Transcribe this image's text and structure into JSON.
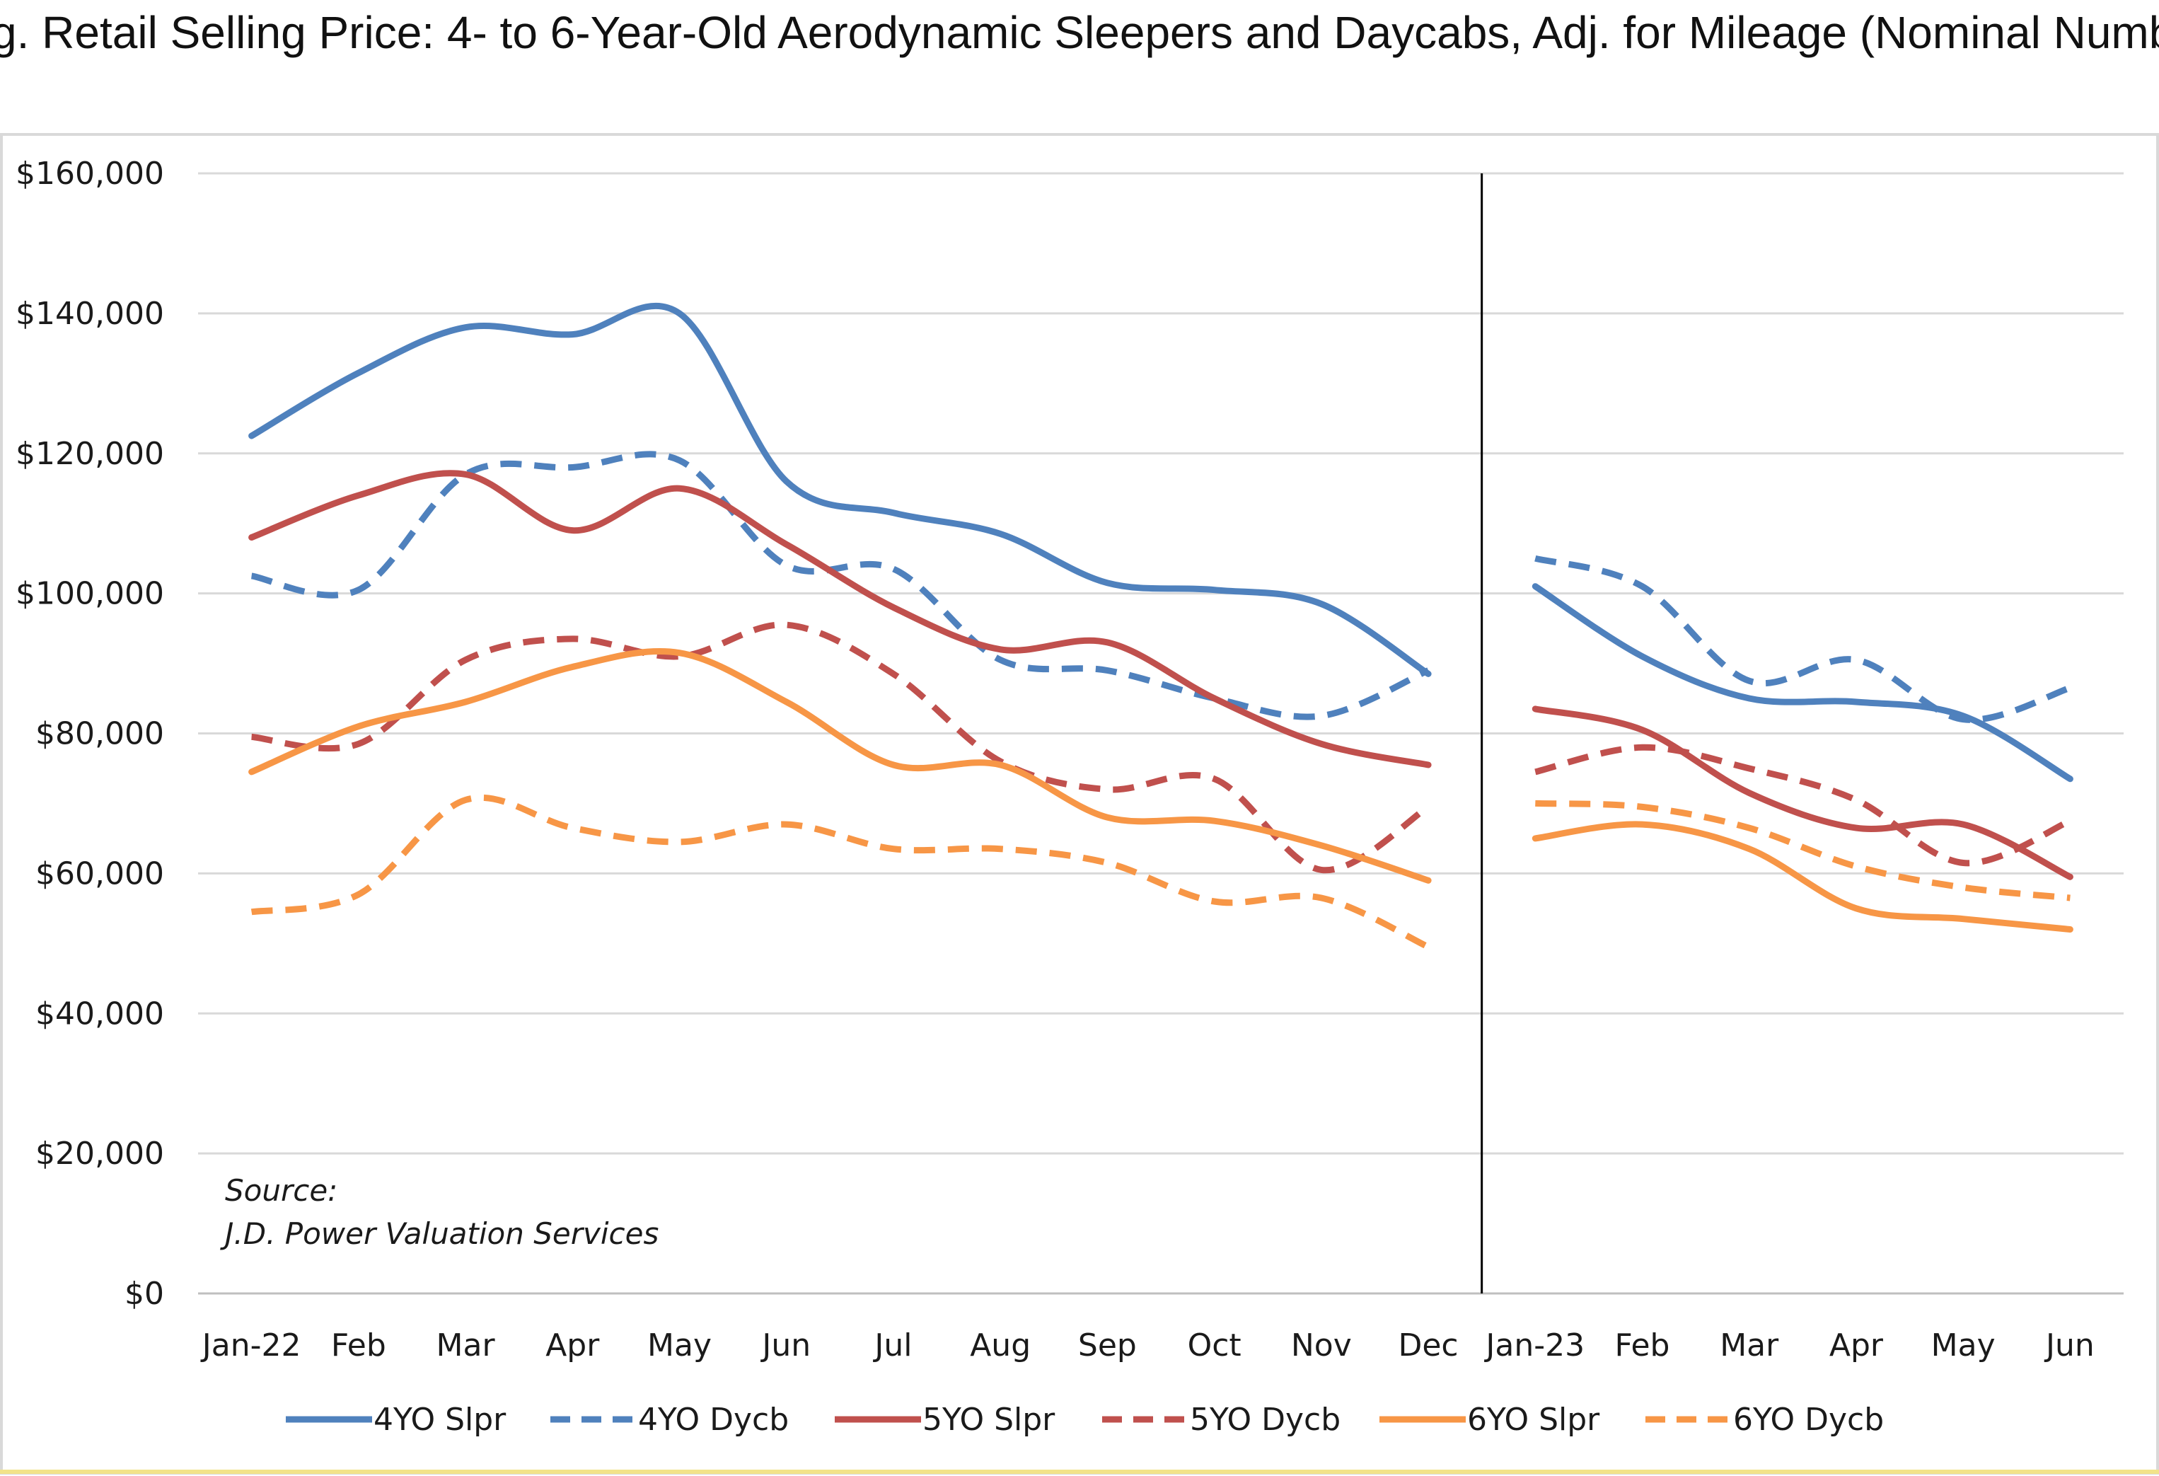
{
  "chart_data": {
    "type": "line",
    "title": "g. Retail Selling Price: 4- to 6-Year-Old Aerodynamic Sleepers and Daycabs, Adj. for Mileage (Nominal Numbe",
    "xlabel": "",
    "ylabel": "",
    "ylim": [
      0,
      160000
    ],
    "yticks": [
      "$0",
      "$20,000",
      "$40,000",
      "$60,000",
      "$80,000",
      "$100,000",
      "$120,000",
      "$140,000",
      "$160,000"
    ],
    "categories": [
      "Jan-22",
      "Feb",
      "Mar",
      "Apr",
      "May",
      "Jun",
      "Jul",
      "Aug",
      "Sep",
      "Oct",
      "Nov",
      "Dec",
      "Jan-23",
      "Feb",
      "Mar",
      "Apr",
      "May",
      "Jun"
    ],
    "grid": true,
    "legend_position": "bottom",
    "divider_between": [
      "Dec",
      "Jan-23"
    ],
    "source_lines": [
      "Source:",
      "J.D. Power Valuation Services"
    ],
    "series": [
      {
        "name": "4YO Slpr",
        "color": "#4f81bd",
        "dashed": false,
        "values": [
          122500,
          131500,
          138000,
          137000,
          140000,
          116000,
          111500,
          108500,
          101500,
          100500,
          98500,
          88500,
          101000,
          91000,
          85000,
          84500,
          82500,
          73500
        ]
      },
      {
        "name": "4YO Dycb",
        "color": "#4f81bd",
        "dashed": true,
        "values": [
          102500,
          100500,
          117000,
          118000,
          119000,
          104000,
          103500,
          90500,
          89000,
          85000,
          82500,
          89000,
          105000,
          101000,
          87500,
          90500,
          82000,
          86500
        ]
      },
      {
        "name": "5YO Slpr",
        "color": "#c0504d",
        "dashed": false,
        "values": [
          108000,
          114000,
          117000,
          109000,
          115000,
          107000,
          98000,
          92000,
          93000,
          85000,
          78500,
          75500,
          83500,
          80500,
          71500,
          66500,
          67000,
          59500
        ]
      },
      {
        "name": "5YO Dycb",
        "color": "#c0504d",
        "dashed": true,
        "values": [
          79500,
          78500,
          90500,
          93500,
          91000,
          95500,
          88500,
          76000,
          72000,
          73500,
          60500,
          69500,
          74500,
          78000,
          75000,
          70500,
          61500,
          67500
        ]
      },
      {
        "name": "6YO Slpr",
        "color": "#f79646",
        "dashed": false,
        "values": [
          74500,
          81000,
          84500,
          89500,
          91500,
          84500,
          75500,
          75500,
          68000,
          67500,
          64000,
          59000,
          65000,
          67000,
          63500,
          55000,
          53500,
          52000
        ]
      },
      {
        "name": "6YO Dycb",
        "color": "#f79646",
        "dashed": true,
        "values": [
          54500,
          57000,
          70500,
          66500,
          64500,
          67000,
          63500,
          63500,
          61500,
          56000,
          56500,
          49500,
          70000,
          69500,
          66500,
          61000,
          58000,
          56500
        ]
      }
    ]
  }
}
